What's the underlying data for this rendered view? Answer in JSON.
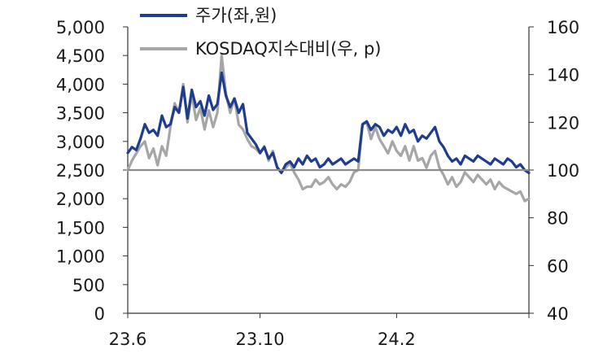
{
  "chart_data": {
    "type": "line",
    "x_tick_labels": [
      "23.6",
      "23.10",
      "24.2"
    ],
    "left_axis": {
      "ylim": [
        0,
        5000
      ],
      "tick_labels": [
        "5,000",
        "4,500",
        "4,000",
        "3,500",
        "3,000",
        "2,500",
        "2,000",
        "1,500",
        "1,000",
        "500",
        "0"
      ]
    },
    "right_axis": {
      "ylim": [
        40,
        160
      ],
      "tick_labels": [
        "160",
        "140",
        "120",
        "100",
        "80",
        "60",
        "40"
      ]
    },
    "reference_line": {
      "axis": "right",
      "value": 100,
      "color": "#8c8c8c"
    },
    "series": [
      {
        "name": "주가(좌,원)",
        "axis": "left",
        "color": "#1f3d8c",
        "points": [
          [
            0,
            2800
          ],
          [
            2,
            2900
          ],
          [
            4,
            2850
          ],
          [
            6,
            3050
          ],
          [
            8,
            3300
          ],
          [
            10,
            3150
          ],
          [
            12,
            3200
          ],
          [
            14,
            3100
          ],
          [
            16,
            3450
          ],
          [
            18,
            3250
          ],
          [
            20,
            3300
          ],
          [
            22,
            3600
          ],
          [
            24,
            3500
          ],
          [
            26,
            3950
          ],
          [
            28,
            3400
          ],
          [
            30,
            3900
          ],
          [
            32,
            3600
          ],
          [
            34,
            3700
          ],
          [
            36,
            3450
          ],
          [
            38,
            3800
          ],
          [
            40,
            3550
          ],
          [
            42,
            3650
          ],
          [
            44,
            4200
          ],
          [
            46,
            3800
          ],
          [
            48,
            3600
          ],
          [
            50,
            3750
          ],
          [
            52,
            3500
          ],
          [
            54,
            3650
          ],
          [
            56,
            3150
          ],
          [
            58,
            3050
          ],
          [
            60,
            2950
          ],
          [
            62,
            2800
          ],
          [
            64,
            2900
          ],
          [
            66,
            2700
          ],
          [
            68,
            2800
          ],
          [
            70,
            2550
          ],
          [
            72,
            2450
          ],
          [
            74,
            2600
          ],
          [
            76,
            2650
          ],
          [
            78,
            2550
          ],
          [
            80,
            2700
          ],
          [
            82,
            2600
          ],
          [
            84,
            2750
          ],
          [
            86,
            2650
          ],
          [
            88,
            2700
          ],
          [
            90,
            2550
          ],
          [
            92,
            2600
          ],
          [
            94,
            2700
          ],
          [
            96,
            2600
          ],
          [
            98,
            2650
          ],
          [
            100,
            2700
          ],
          [
            102,
            2600
          ],
          [
            104,
            2650
          ],
          [
            106,
            2700
          ],
          [
            108,
            2650
          ],
          [
            110,
            3300
          ],
          [
            112,
            3350
          ],
          [
            114,
            3200
          ],
          [
            116,
            3300
          ],
          [
            118,
            3250
          ],
          [
            120,
            3100
          ],
          [
            122,
            3200
          ],
          [
            124,
            3150
          ],
          [
            126,
            3250
          ],
          [
            128,
            3100
          ],
          [
            130,
            3300
          ],
          [
            132,
            3150
          ],
          [
            134,
            3200
          ],
          [
            136,
            3000
          ],
          [
            138,
            3100
          ],
          [
            140,
            3050
          ],
          [
            142,
            3150
          ],
          [
            144,
            3250
          ],
          [
            146,
            3000
          ],
          [
            148,
            2900
          ],
          [
            150,
            2750
          ],
          [
            152,
            2650
          ],
          [
            154,
            2700
          ],
          [
            156,
            2600
          ],
          [
            158,
            2750
          ],
          [
            160,
            2700
          ],
          [
            162,
            2650
          ],
          [
            164,
            2750
          ],
          [
            166,
            2700
          ],
          [
            168,
            2650
          ],
          [
            170,
            2600
          ],
          [
            172,
            2700
          ],
          [
            174,
            2650
          ],
          [
            176,
            2600
          ],
          [
            178,
            2700
          ],
          [
            180,
            2650
          ],
          [
            182,
            2550
          ],
          [
            184,
            2600
          ],
          [
            186,
            2500
          ],
          [
            188,
            2450
          ]
        ]
      },
      {
        "name": "KOSDAQ지수대비(우, p)",
        "axis": "right",
        "color": "#a6a6a6",
        "points": [
          [
            0,
            100
          ],
          [
            2,
            104
          ],
          [
            4,
            107
          ],
          [
            6,
            110
          ],
          [
            8,
            112
          ],
          [
            10,
            105
          ],
          [
            12,
            109
          ],
          [
            14,
            102
          ],
          [
            16,
            110
          ],
          [
            18,
            106
          ],
          [
            20,
            118
          ],
          [
            22,
            128
          ],
          [
            24,
            124
          ],
          [
            26,
            136
          ],
          [
            28,
            120
          ],
          [
            30,
            132
          ],
          [
            32,
            121
          ],
          [
            34,
            126
          ],
          [
            36,
            117
          ],
          [
            38,
            125
          ],
          [
            40,
            118
          ],
          [
            42,
            124
          ],
          [
            44,
            148
          ],
          [
            46,
            132
          ],
          [
            48,
            124
          ],
          [
            50,
            130
          ],
          [
            52,
            119
          ],
          [
            54,
            117
          ],
          [
            56,
            113
          ],
          [
            58,
            110
          ],
          [
            60,
            109
          ],
          [
            62,
            107
          ],
          [
            64,
            110
          ],
          [
            66,
            104
          ],
          [
            68,
            108
          ],
          [
            70,
            101
          ],
          [
            72,
            99
          ],
          [
            74,
            101
          ],
          [
            76,
            103
          ],
          [
            78,
            99
          ],
          [
            80,
            96
          ],
          [
            82,
            92
          ],
          [
            84,
            93
          ],
          [
            86,
            93
          ],
          [
            88,
            96
          ],
          [
            90,
            94
          ],
          [
            92,
            95
          ],
          [
            94,
            97
          ],
          [
            96,
            94
          ],
          [
            98,
            92
          ],
          [
            100,
            94
          ],
          [
            102,
            93
          ],
          [
            104,
            95
          ],
          [
            106,
            99
          ],
          [
            108,
            100
          ],
          [
            110,
            119
          ],
          [
            112,
            120
          ],
          [
            114,
            113
          ],
          [
            116,
            118
          ],
          [
            118,
            113
          ],
          [
            120,
            110
          ],
          [
            122,
            107
          ],
          [
            124,
            112
          ],
          [
            126,
            108
          ],
          [
            128,
            106
          ],
          [
            130,
            110
          ],
          [
            132,
            104
          ],
          [
            134,
            110
          ],
          [
            136,
            104
          ],
          [
            138,
            105
          ],
          [
            140,
            101
          ],
          [
            142,
            106
          ],
          [
            144,
            108
          ],
          [
            146,
            101
          ],
          [
            148,
            98
          ],
          [
            150,
            94
          ],
          [
            152,
            97
          ],
          [
            154,
            93
          ],
          [
            156,
            95
          ],
          [
            158,
            99
          ],
          [
            160,
            97
          ],
          [
            162,
            95
          ],
          [
            164,
            98
          ],
          [
            166,
            96
          ],
          [
            168,
            94
          ],
          [
            170,
            96
          ],
          [
            172,
            92
          ],
          [
            174,
            95
          ],
          [
            176,
            93
          ],
          [
            178,
            92
          ],
          [
            180,
            91
          ],
          [
            182,
            90
          ],
          [
            184,
            91
          ],
          [
            186,
            87
          ],
          [
            188,
            88
          ]
        ]
      }
    ],
    "legend_position": "top",
    "grid": false
  }
}
